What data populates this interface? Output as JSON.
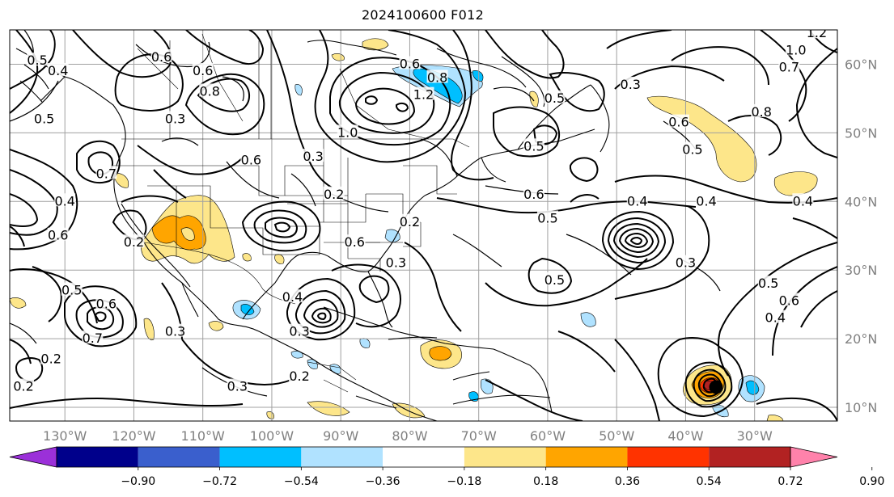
{
  "title": "2024100600 F012",
  "lon_labels": [
    "130°W",
    "120°W",
    "110°W",
    "100°W",
    "90°W",
    "80°W",
    "70°W",
    "60°W",
    "50°W",
    "40°W",
    "30°W"
  ],
  "lat_labels": [
    "60°N",
    "50°N",
    "40°N",
    "30°N",
    "20°N",
    "10°N"
  ],
  "colorbar": {
    "colors": [
      "#9b30d9",
      "#00008b",
      "#3a5fcd",
      "#00bfff",
      "#b0e2ff",
      "#ffffff",
      "#fde68a",
      "#ffa500",
      "#ff3300",
      "#b22222",
      "#ff82ab"
    ],
    "labels": [
      "−0.90",
      "−0.72",
      "−0.54",
      "−0.36",
      "−0.18",
      "0.18",
      "0.36",
      "0.54",
      "0.72",
      "0.90"
    ]
  },
  "contour_labels": [
    {
      "text": "0.5",
      "lon": -134,
      "lat": 60.5
    },
    {
      "text": "0.4",
      "lon": -131,
      "lat": 59
    },
    {
      "text": "0.6",
      "lon": -116,
      "lat": 61
    },
    {
      "text": "0.6",
      "lon": -110,
      "lat": 59
    },
    {
      "text": "0.8",
      "lon": -109,
      "lat": 56
    },
    {
      "text": "0.3",
      "lon": -114,
      "lat": 52
    },
    {
      "text": "0.5",
      "lon": -133,
      "lat": 52
    },
    {
      "text": "0.6",
      "lon": -103,
      "lat": 46
    },
    {
      "text": "0.7",
      "lon": -124,
      "lat": 44
    },
    {
      "text": "0.4",
      "lon": -130,
      "lat": 40
    },
    {
      "text": "0.6",
      "lon": -131,
      "lat": 35
    },
    {
      "text": "0.2",
      "lon": -120,
      "lat": 34
    },
    {
      "text": "0.3",
      "lon": -94,
      "lat": 46.5
    },
    {
      "text": "0.2",
      "lon": -91,
      "lat": 41
    },
    {
      "text": "0.6",
      "lon": -88,
      "lat": 34
    },
    {
      "text": "0.2",
      "lon": -80,
      "lat": 37
    },
    {
      "text": "0.3",
      "lon": -82,
      "lat": 31
    },
    {
      "text": "0.6",
      "lon": -80,
      "lat": 60
    },
    {
      "text": "0.8",
      "lon": -76,
      "lat": 58
    },
    {
      "text": "1.2",
      "lon": -78,
      "lat": 55.5
    },
    {
      "text": "1.0",
      "lon": -89,
      "lat": 50
    },
    {
      "text": "0.5",
      "lon": -59,
      "lat": 55
    },
    {
      "text": "0.5",
      "lon": -62,
      "lat": 48
    },
    {
      "text": "0.6",
      "lon": -62,
      "lat": 41
    },
    {
      "text": "0.5",
      "lon": -60,
      "lat": 37.5
    },
    {
      "text": "0.3",
      "lon": -48,
      "lat": 57
    },
    {
      "text": "0.4",
      "lon": -47,
      "lat": 40
    },
    {
      "text": "0.3",
      "lon": -40,
      "lat": 31
    },
    {
      "text": "0.5",
      "lon": -59,
      "lat": 28.5
    },
    {
      "text": "0.5",
      "lon": -39,
      "lat": 47.5
    },
    {
      "text": "0.4",
      "lon": -37,
      "lat": 40
    },
    {
      "text": "0.4",
      "lon": -23,
      "lat": 40
    },
    {
      "text": "0.6",
      "lon": -41,
      "lat": 51.5
    },
    {
      "text": "0.8",
      "lon": -29,
      "lat": 53
    },
    {
      "text": "0.7",
      "lon": -25,
      "lat": 59.5
    },
    {
      "text": "1.0",
      "lon": -24,
      "lat": 62
    },
    {
      "text": "1.2",
      "lon": -21,
      "lat": 64.5
    },
    {
      "text": "0.5",
      "lon": -28,
      "lat": 28
    },
    {
      "text": "0.6",
      "lon": -25,
      "lat": 25.5
    },
    {
      "text": "0.4",
      "lon": -27,
      "lat": 23
    },
    {
      "text": "0.5",
      "lon": -129,
      "lat": 27
    },
    {
      "text": "0.6",
      "lon": -124,
      "lat": 25
    },
    {
      "text": "0.7",
      "lon": -126,
      "lat": 20
    },
    {
      "text": "0.2",
      "lon": -132,
      "lat": 17
    },
    {
      "text": "0.2",
      "lon": -136,
      "lat": 13
    },
    {
      "text": "0.3",
      "lon": -114,
      "lat": 21
    },
    {
      "text": "0.3",
      "lon": -105,
      "lat": 13
    },
    {
      "text": "0.2",
      "lon": -96,
      "lat": 14.5
    },
    {
      "text": "0.4",
      "lon": -97,
      "lat": 26
    },
    {
      "text": "0.3",
      "lon": -96,
      "lat": 21
    }
  ]
}
